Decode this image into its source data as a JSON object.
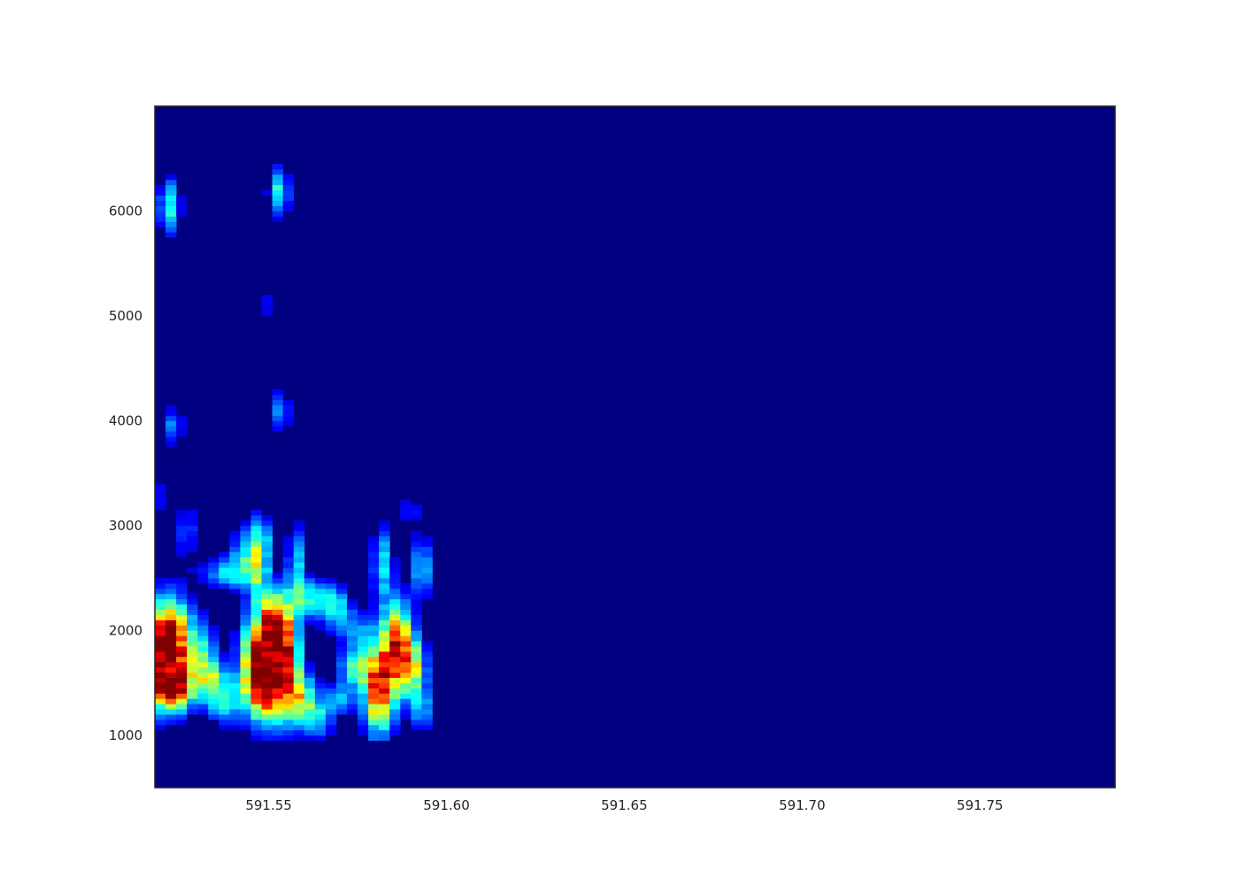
{
  "chart_data": {
    "type": "heatmap",
    "title": "",
    "xlabel": "",
    "ylabel": "",
    "colormap": "jet",
    "background_color": "#000080",
    "frame_color": "#262626",
    "grid": false,
    "xlim": [
      591.518,
      591.788
    ],
    "ylim": [
      500,
      7000
    ],
    "xticks": [
      591.55,
      591.6,
      591.65,
      591.7,
      591.75
    ],
    "xtick_labels": [
      "591.55",
      "591.60",
      "591.65",
      "591.70",
      "591.75"
    ],
    "yticks": [
      1000,
      2000,
      3000,
      4000,
      5000,
      6000
    ],
    "ytick_labels": [
      "1000",
      "2000",
      "3000",
      "4000",
      "5000",
      "6000"
    ],
    "time_bins": {
      "start": 591.518,
      "step": 0.003,
      "count": 27
    },
    "freq_bins": {
      "start": 500,
      "step": 50,
      "count": 130
    },
    "signal_extent": {
      "x_end": 591.596,
      "y_min": 950,
      "y_max": 6450
    },
    "blobs": [
      {
        "t": 591.522,
        "f": 1900,
        "dt": 0.004,
        "df": 280,
        "v": 1.0
      },
      {
        "t": 591.52,
        "f": 1600,
        "dt": 0.003,
        "df": 250,
        "v": 0.75
      },
      {
        "t": 591.525,
        "f": 1450,
        "dt": 0.003,
        "df": 150,
        "v": 0.6
      },
      {
        "t": 591.522,
        "f": 6050,
        "dt": 0.002,
        "df": 180,
        "v": 0.42
      },
      {
        "t": 591.523,
        "f": 3950,
        "dt": 0.002,
        "df": 120,
        "v": 0.25
      },
      {
        "t": 591.519,
        "f": 3300,
        "dt": 0.002,
        "df": 200,
        "v": 0.12
      },
      {
        "t": 591.527,
        "f": 2950,
        "dt": 0.002,
        "df": 200,
        "v": 0.2
      },
      {
        "t": 591.531,
        "f": 1850,
        "dt": 0.003,
        "df": 200,
        "v": 0.3
      },
      {
        "t": 591.533,
        "f": 1550,
        "dt": 0.003,
        "df": 150,
        "v": 0.45
      },
      {
        "t": 591.538,
        "f": 1350,
        "dt": 0.004,
        "df": 160,
        "v": 0.38
      },
      {
        "t": 591.538,
        "f": 2550,
        "dt": 0.005,
        "df": 100,
        "v": 0.3
      },
      {
        "t": 591.543,
        "f": 2700,
        "dt": 0.003,
        "df": 200,
        "v": 0.28
      },
      {
        "t": 591.545,
        "f": 1700,
        "dt": 0.003,
        "df": 300,
        "v": 0.45
      },
      {
        "t": 591.547,
        "f": 2650,
        "dt": 0.002,
        "df": 300,
        "v": 0.4
      },
      {
        "t": 591.549,
        "f": 1550,
        "dt": 0.003,
        "df": 280,
        "v": 0.95
      },
      {
        "t": 591.552,
        "f": 2000,
        "dt": 0.003,
        "df": 250,
        "v": 1.0
      },
      {
        "t": 591.555,
        "f": 1550,
        "dt": 0.003,
        "df": 300,
        "v": 0.7
      },
      {
        "t": 591.553,
        "f": 6200,
        "dt": 0.002,
        "df": 160,
        "v": 0.4
      },
      {
        "t": 591.553,
        "f": 4100,
        "dt": 0.002,
        "df": 140,
        "v": 0.28
      },
      {
        "t": 591.549,
        "f": 5100,
        "dt": 0.002,
        "df": 150,
        "v": 0.12
      },
      {
        "t": 591.549,
        "f": 2850,
        "dt": 0.002,
        "df": 150,
        "v": 0.15
      },
      {
        "t": 591.558,
        "f": 2600,
        "dt": 0.002,
        "df": 300,
        "v": 0.32
      },
      {
        "t": 591.562,
        "f": 2300,
        "dt": 0.004,
        "df": 120,
        "v": 0.38
      },
      {
        "t": 591.56,
        "f": 1350,
        "dt": 0.003,
        "df": 160,
        "v": 0.4
      },
      {
        "t": 591.564,
        "f": 1150,
        "dt": 0.003,
        "df": 130,
        "v": 0.3
      },
      {
        "t": 591.569,
        "f": 2200,
        "dt": 0.003,
        "df": 150,
        "v": 0.35
      },
      {
        "t": 591.57,
        "f": 1350,
        "dt": 0.003,
        "df": 100,
        "v": 0.3
      },
      {
        "t": 591.574,
        "f": 1650,
        "dt": 0.003,
        "df": 140,
        "v": 0.42
      },
      {
        "t": 591.575,
        "f": 2000,
        "dt": 0.003,
        "df": 120,
        "v": 0.25
      },
      {
        "t": 591.581,
        "f": 1450,
        "dt": 0.003,
        "df": 300,
        "v": 0.85
      },
      {
        "t": 591.582,
        "f": 2650,
        "dt": 0.002,
        "df": 250,
        "v": 0.35
      },
      {
        "t": 591.586,
        "f": 1900,
        "dt": 0.003,
        "df": 280,
        "v": 0.7
      },
      {
        "t": 591.59,
        "f": 1650,
        "dt": 0.003,
        "df": 200,
        "v": 0.55
      },
      {
        "t": 591.593,
        "f": 2600,
        "dt": 0.002,
        "df": 200,
        "v": 0.35
      },
      {
        "t": 591.593,
        "f": 1250,
        "dt": 0.002,
        "df": 150,
        "v": 0.3
      },
      {
        "t": 591.59,
        "f": 3150,
        "dt": 0.002,
        "df": 120,
        "v": 0.15
      }
    ]
  }
}
